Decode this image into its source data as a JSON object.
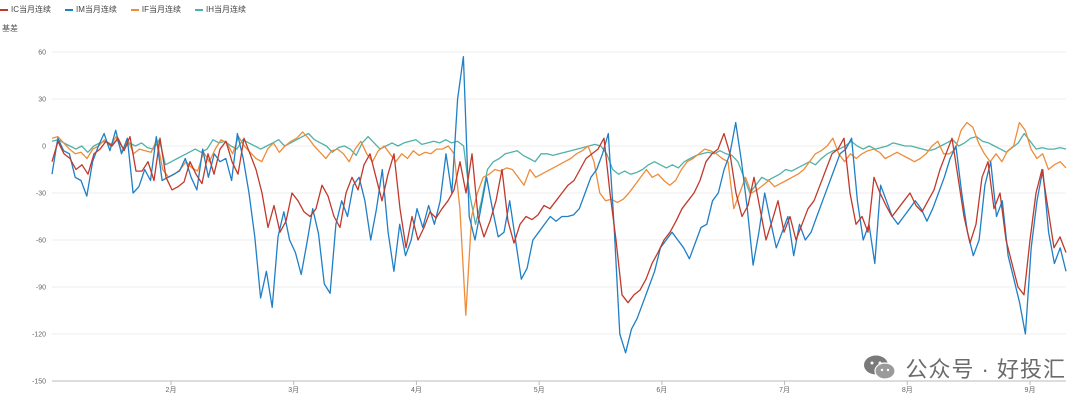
{
  "legend": [
    {
      "label": "IC当月连续",
      "color": "#c0392b"
    },
    {
      "label": "IM当月连续",
      "color": "#1f7fc7"
    },
    {
      "label": "IF当月连续",
      "color": "#ef8c3a"
    },
    {
      "label": "IH当月连续",
      "color": "#4fb2a8"
    }
  ],
  "watermark": {
    "text": "公众号 · 好投汇"
  },
  "chart_data": {
    "type": "line",
    "title": "",
    "xlabel": "",
    "ylabel": "基差",
    "ylim": [
      -150,
      60
    ],
    "yticks": [
      60,
      30,
      0,
      -30,
      -60,
      -90,
      -120,
      -150
    ],
    "xticks": [
      "2月",
      "3月",
      "4月",
      "5月",
      "6月",
      "7月",
      "8月",
      "9月"
    ],
    "grid": true,
    "legend_position": "top-left",
    "series": [
      {
        "name": "IC当月连续",
        "color": "#c0392b",
        "values": [
          -10,
          3,
          -5,
          -8,
          -15,
          -12,
          -18,
          -5,
          -2,
          3,
          0,
          5,
          -3,
          6,
          -16,
          -16,
          -10,
          -22,
          5,
          -20,
          -28,
          -26,
          -23,
          -10,
          -18,
          -24,
          -5,
          -18,
          -2,
          3,
          -10,
          -18,
          5,
          -5,
          -15,
          -30,
          -52,
          -38,
          -55,
          -48,
          -30,
          -35,
          -42,
          -45,
          -40,
          -25,
          -32,
          -45,
          -52,
          -30,
          -20,
          -28,
          -12,
          -5,
          -20,
          -35,
          -18,
          -5,
          -40,
          -65,
          -45,
          -60,
          -52,
          -42,
          -46,
          -40,
          -35,
          -28,
          -10,
          -30,
          -5,
          -45,
          -58,
          -48,
          -35,
          -15,
          -48,
          -62,
          -50,
          -45,
          -47,
          -44,
          -38,
          -40,
          -35,
          -30,
          -25,
          -22,
          -15,
          -8,
          -5,
          -2,
          5,
          -30,
          -60,
          -95,
          -100,
          -95,
          -92,
          -85,
          -75,
          -68,
          -60,
          -55,
          -48,
          -40,
          -35,
          -30,
          -22,
          -10,
          -5,
          -2,
          8,
          -5,
          -30,
          -45,
          -38,
          -20,
          -40,
          -60,
          -48,
          -35,
          -55,
          -45,
          -60,
          -50,
          -40,
          -35,
          -25,
          -15,
          -5,
          -2,
          5,
          -30,
          -50,
          -45,
          -55,
          -20,
          -30,
          -38,
          -45,
          -40,
          -35,
          -30,
          -38,
          -42,
          -35,
          -28,
          -15,
          -5,
          5,
          -20,
          -45,
          -62,
          -50,
          -20,
          -10,
          -40,
          -30,
          -60,
          -75,
          -90,
          -95,
          -60,
          -30,
          -15,
          -40,
          -65,
          -58,
          -68
        ]
      },
      {
        "name": "IM当月连续",
        "color": "#1f7fc7",
        "values": [
          -18,
          5,
          -3,
          -5,
          -20,
          -22,
          -32,
          -10,
          0,
          8,
          -3,
          10,
          -5,
          5,
          -30,
          -26,
          -15,
          -22,
          6,
          -22,
          -20,
          -18,
          -16,
          -8,
          -20,
          -28,
          -2,
          -20,
          -5,
          -10,
          -8,
          -22,
          8,
          -8,
          -30,
          -58,
          -97,
          -80,
          -103,
          -58,
          -42,
          -60,
          -68,
          -82,
          -62,
          -40,
          -56,
          -88,
          -94,
          -50,
          -35,
          -45,
          -25,
          -20,
          -35,
          -60,
          -40,
          -15,
          -55,
          -80,
          -50,
          -70,
          -60,
          -40,
          -52,
          -38,
          -50,
          -35,
          -5,
          -30,
          30,
          57,
          -45,
          -60,
          -40,
          -20,
          -40,
          -58,
          -55,
          -35,
          -60,
          -85,
          -78,
          -60,
          -55,
          -50,
          -45,
          -48,
          -45,
          -45,
          -44,
          -40,
          -30,
          -20,
          -15,
          -5,
          8,
          -50,
          -120,
          -132,
          -117,
          -110,
          -100,
          -90,
          -80,
          -65,
          -60,
          -55,
          -60,
          -65,
          -72,
          -62,
          -52,
          -50,
          -35,
          -30,
          -15,
          -5,
          15,
          -10,
          -40,
          -76,
          -55,
          -30,
          -48,
          -65,
          -55,
          -45,
          -70,
          -50,
          -60,
          -55,
          -45,
          -35,
          -25,
          -15,
          -5,
          -2,
          5,
          -35,
          -60,
          -50,
          -75,
          -25,
          -35,
          -45,
          -50,
          -45,
          -40,
          -35,
          -40,
          -48,
          -40,
          -30,
          -20,
          -8,
          0,
          -30,
          -55,
          -70,
          -60,
          -25,
          -10,
          -45,
          -35,
          -70,
          -85,
          -100,
          -120,
          -65,
          -35,
          -15,
          -55,
          -75,
          -65,
          -80
        ]
      },
      {
        "name": "IF当月连续",
        "color": "#ef8c3a",
        "values": [
          5,
          6,
          2,
          -2,
          -5,
          -4,
          -8,
          -2,
          0,
          4,
          0,
          6,
          -4,
          4,
          -5,
          -2,
          -3,
          -4,
          4,
          -15,
          -20,
          -18,
          -15,
          -10,
          -14,
          -16,
          -4,
          -10,
          -2,
          4,
          2,
          -5,
          6,
          0,
          -4,
          -8,
          -10,
          -2,
          2,
          -4,
          0,
          3,
          5,
          9,
          5,
          0,
          -4,
          -8,
          -3,
          -2,
          -5,
          -10,
          -2,
          3,
          -5,
          -10,
          -3,
          0,
          -5,
          -10,
          -5,
          -8,
          -3,
          -6,
          -4,
          -5,
          -2,
          -2,
          0,
          -5,
          -40,
          -108,
          -45,
          -30,
          -20,
          -18,
          -15,
          -16,
          -14,
          -15,
          -20,
          -25,
          -15,
          -20,
          -18,
          -16,
          -14,
          -12,
          -10,
          -8,
          -5,
          -3,
          0,
          -10,
          -30,
          -35,
          -34,
          -36,
          -34,
          -30,
          -25,
          -20,
          -15,
          -20,
          -18,
          -22,
          -25,
          -22,
          -15,
          -10,
          -8,
          -5,
          -2,
          -3,
          -5,
          -8,
          -10,
          -40,
          -30,
          -20,
          -30,
          -28,
          -25,
          -22,
          -26,
          -24,
          -22,
          -20,
          -18,
          -15,
          -10,
          -5,
          -3,
          0,
          5,
          -5,
          -10,
          -5,
          -8,
          -5,
          -3,
          -2,
          -4,
          -8,
          -6,
          -4,
          -6,
          -8,
          -10,
          -8,
          -5,
          0,
          3,
          -5,
          -5,
          -2,
          10,
          15,
          12,
          2,
          -5,
          -10,
          -5,
          -10,
          -3,
          0,
          15,
          10,
          -2,
          -8,
          -5,
          -15,
          -12,
          -10,
          -14
        ]
      },
      {
        "name": "IH当月连续",
        "color": "#4fb2a8",
        "values": [
          3,
          4,
          2,
          0,
          -2,
          0,
          -4,
          0,
          2,
          3,
          1,
          4,
          -2,
          2,
          0,
          2,
          -1,
          -2,
          4,
          -12,
          -10,
          -8,
          -6,
          -4,
          -2,
          -4,
          -2,
          4,
          2,
          3,
          0,
          -2,
          4,
          2,
          0,
          -2,
          0,
          2,
          4,
          0,
          2,
          4,
          6,
          8,
          4,
          2,
          0,
          -4,
          -1,
          0,
          -2,
          -6,
          2,
          6,
          2,
          -2,
          0,
          2,
          0,
          2,
          3,
          4,
          1,
          2,
          3,
          2,
          4,
          2,
          3,
          0,
          -30,
          -50,
          -35,
          -15,
          -10,
          -8,
          -5,
          -4,
          -3,
          -6,
          -8,
          -10,
          -5,
          -5,
          -6,
          -5,
          -4,
          -3,
          -2,
          -1,
          0,
          1,
          0,
          -5,
          -15,
          -18,
          -16,
          -18,
          -17,
          -15,
          -12,
          -10,
          -12,
          -14,
          -12,
          -14,
          -10,
          -8,
          -6,
          -5,
          -4,
          -5,
          -3,
          -5,
          -6,
          -10,
          -20,
          -30,
          -25,
          -20,
          -22,
          -20,
          -18,
          -15,
          -16,
          -14,
          -12,
          -10,
          -12,
          -8,
          -5,
          -3,
          -2,
          0,
          3,
          0,
          -2,
          0,
          -2,
          -1,
          0,
          2,
          1,
          0,
          0,
          -1,
          -2,
          -3,
          -2,
          0,
          2,
          4,
          0,
          2,
          5,
          6,
          3,
          2,
          0,
          -2,
          -4,
          -1,
          2,
          8,
          3,
          -2,
          -1,
          -2,
          -2,
          -1,
          -2
        ]
      }
    ]
  }
}
